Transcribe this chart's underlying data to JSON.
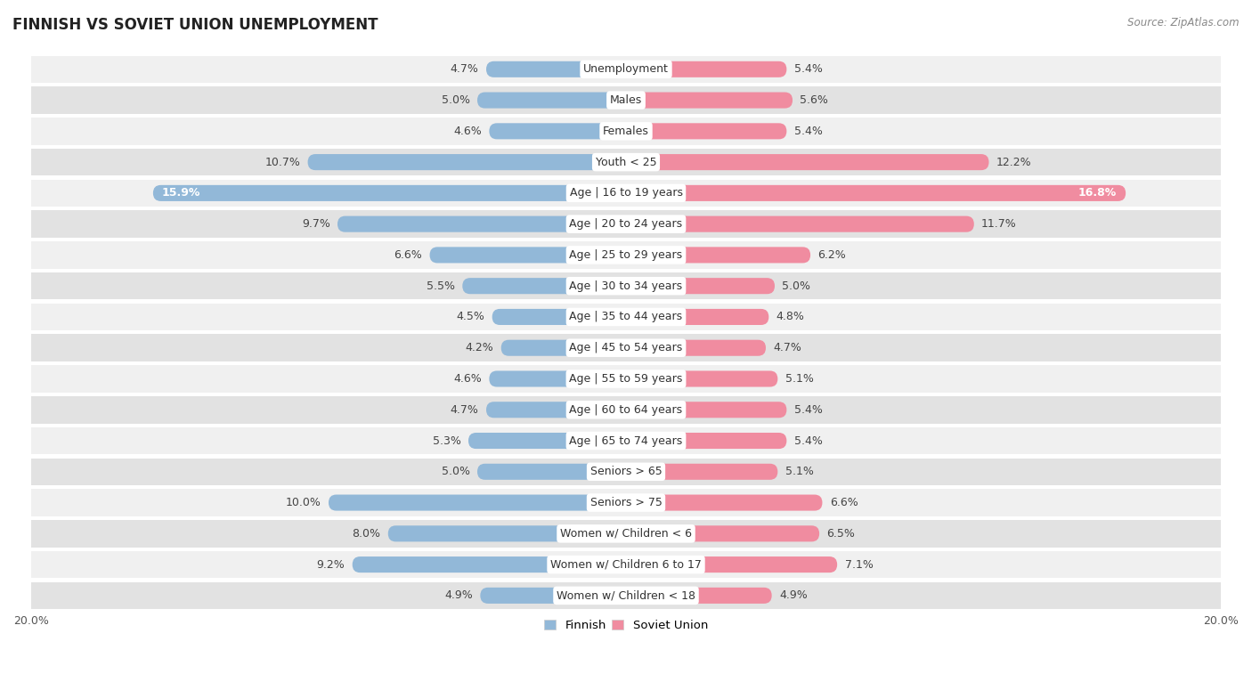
{
  "title": "FINNISH VS SOVIET UNION UNEMPLOYMENT",
  "source": "Source: ZipAtlas.com",
  "categories": [
    "Unemployment",
    "Males",
    "Females",
    "Youth < 25",
    "Age | 16 to 19 years",
    "Age | 20 to 24 years",
    "Age | 25 to 29 years",
    "Age | 30 to 34 years",
    "Age | 35 to 44 years",
    "Age | 45 to 54 years",
    "Age | 55 to 59 years",
    "Age | 60 to 64 years",
    "Age | 65 to 74 years",
    "Seniors > 65",
    "Seniors > 75",
    "Women w/ Children < 6",
    "Women w/ Children 6 to 17",
    "Women w/ Children < 18"
  ],
  "finnish": [
    4.7,
    5.0,
    4.6,
    10.7,
    15.9,
    9.7,
    6.6,
    5.5,
    4.5,
    4.2,
    4.6,
    4.7,
    5.3,
    5.0,
    10.0,
    8.0,
    9.2,
    4.9
  ],
  "soviet": [
    5.4,
    5.6,
    5.4,
    12.2,
    16.8,
    11.7,
    6.2,
    5.0,
    4.8,
    4.7,
    5.1,
    5.4,
    5.4,
    5.1,
    6.6,
    6.5,
    7.1,
    4.9
  ],
  "max_val": 20.0,
  "finnish_color": "#92b8d8",
  "soviet_color": "#f08ca0",
  "finnish_label": "Finnish",
  "soviet_label": "Soviet Union",
  "bar_height": 0.52,
  "row_light_color": "#f0f0f0",
  "row_dark_color": "#e2e2e2",
  "row_gap_color": "#ffffff",
  "label_fontsize": 9.0,
  "value_fontsize": 9.0,
  "title_fontsize": 12,
  "axis_label_fontsize": 9,
  "title_color": "#222222",
  "source_color": "#888888",
  "value_color": "#444444"
}
